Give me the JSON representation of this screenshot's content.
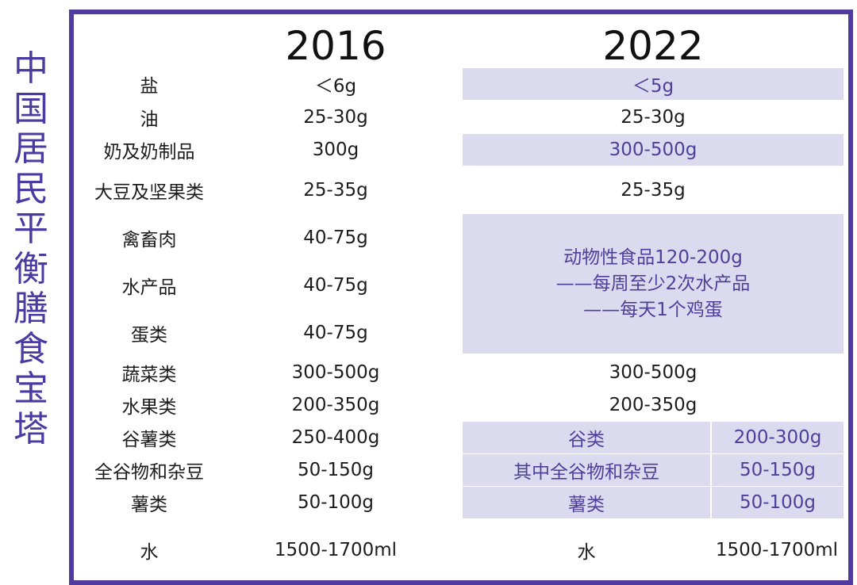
{
  "side_title": [
    "中",
    "国",
    "居",
    "民",
    "平",
    "衡",
    "膳",
    "食",
    "宝",
    "塔"
  ],
  "years": {
    "y2016": "2016",
    "y2022": "2022"
  },
  "rows": {
    "salt": {
      "name": "盐",
      "v2016": "＜6g",
      "v2022": "＜5g"
    },
    "oil": {
      "name": "油",
      "v2016": "25-30g",
      "v2022": "25-30g"
    },
    "milk": {
      "name": "奶及奶制品",
      "v2016": "300g",
      "v2022": "300-500g"
    },
    "soy": {
      "name": "大豆及坚果类",
      "v2016": "25-35g",
      "v2022": "25-35g"
    },
    "poultry": {
      "name": "禽畜肉",
      "v2016": "40-75g"
    },
    "aquatic": {
      "name": "水产品",
      "v2016": "40-75g"
    },
    "egg": {
      "name": "蛋类",
      "v2016": "40-75g"
    },
    "veg": {
      "name": "蔬菜类",
      "v2016": "300-500g",
      "v2022": "300-500g"
    },
    "fruit": {
      "name": "水果类",
      "v2016": "200-350g",
      "v2022": "200-350g"
    },
    "grain": {
      "name": "谷薯类",
      "v2016": "250-400g",
      "name2022": "谷类",
      "v2022": "200-300g"
    },
    "whole": {
      "name": "全谷物和杂豆",
      "v2016": "50-150g",
      "name2022": "其中全谷物和杂豆",
      "v2022": "50-150g"
    },
    "tuber": {
      "name": "薯类",
      "v2016": "50-100g",
      "name2022": "薯类",
      "v2022": "50-100g"
    },
    "water": {
      "name": "水",
      "v2016": "1500-1700ml",
      "name2022": "水",
      "v2022": "1500-1700ml"
    }
  },
  "animal_2022": [
    "动物性食品120-200g",
    "——每周至少2次水产品",
    "——每天1个鸡蛋"
  ],
  "colors": {
    "border": "#4f3c9e",
    "shade": "#dcdaee",
    "accent_text": "#4f3f9a",
    "title": "#4b3aa2"
  }
}
